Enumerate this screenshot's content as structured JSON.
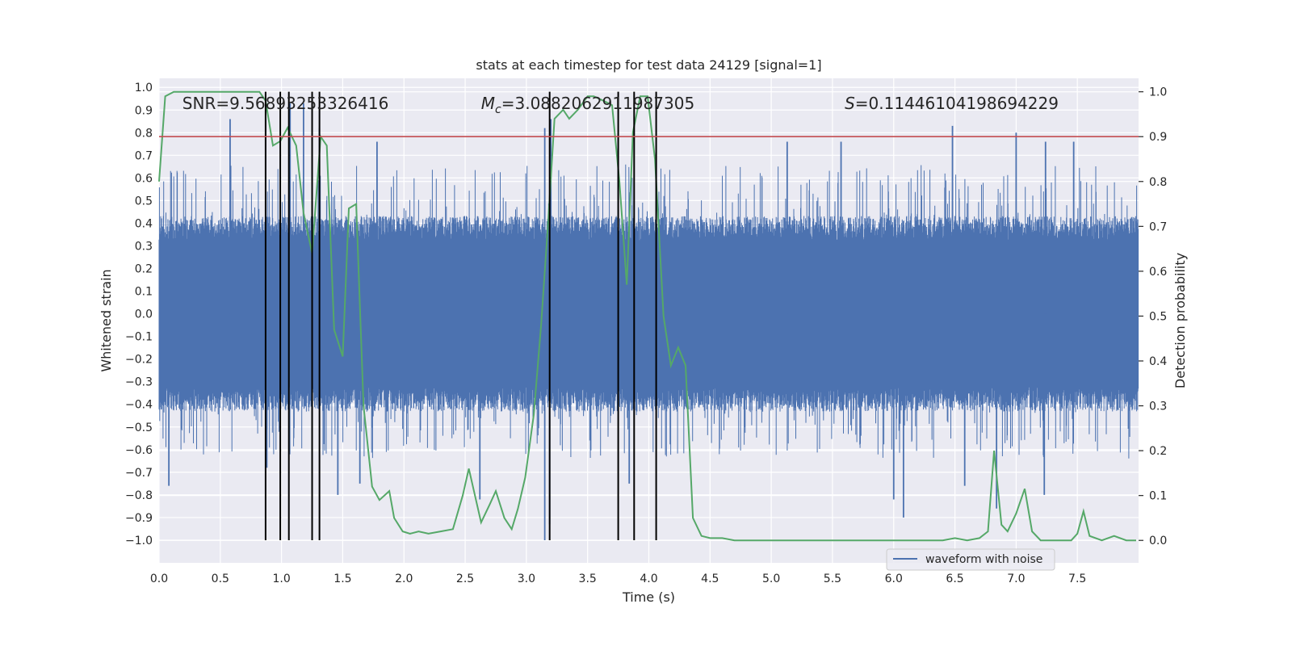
{
  "chart_data": {
    "type": "line",
    "title": "stats at each timestep for test data 24129 [signal=1]",
    "xlabel": "Time (s)",
    "ylabel": "Whitened strain",
    "y2label": "Detection probability",
    "xlim": [
      0,
      8
    ],
    "ylim": [
      -1.1,
      1.04
    ],
    "y2lim": [
      -0.05,
      1.03
    ],
    "xticks": [
      0.0,
      0.5,
      1.0,
      1.5,
      2.0,
      2.5,
      3.0,
      3.5,
      4.0,
      4.5,
      5.0,
      5.5,
      6.0,
      6.5,
      7.0,
      7.5
    ],
    "xtick_labels": [
      "0.0",
      "0.5",
      "1.0",
      "1.5",
      "2.0",
      "2.5",
      "3.0",
      "3.5",
      "4.0",
      "4.5",
      "5.0",
      "5.5",
      "6.0",
      "6.5",
      "7.0",
      "7.5"
    ],
    "yticks": [
      1.0,
      0.9,
      0.8,
      0.7,
      0.6,
      0.5,
      0.4,
      0.3,
      0.2,
      0.1,
      0.0,
      -0.1,
      -0.2,
      -0.3,
      -0.4,
      -0.5,
      -0.6,
      -0.7,
      -0.8,
      -0.9,
      -1.0
    ],
    "ytick_labels": [
      "1.0",
      "0.9",
      "0.8",
      "0.7",
      "0.6",
      "0.5",
      "0.4",
      "0.3",
      "0.2",
      "0.1",
      "0.0",
      "−0.1",
      "−0.2",
      "−0.3",
      "−0.4",
      "−0.5",
      "−0.6",
      "−0.7",
      "−0.8",
      "−0.9",
      "−1.0"
    ],
    "y2ticks": [
      1.0,
      0.9,
      0.8,
      0.7,
      0.6,
      0.5,
      0.4,
      0.3,
      0.2,
      0.1,
      0.0
    ],
    "y2tick_labels": [
      "1.0",
      "0.9",
      "0.8",
      "0.7",
      "0.6",
      "0.5",
      "0.4",
      "0.3",
      "0.2",
      "0.1",
      "0.0"
    ],
    "grid": true,
    "legend": {
      "position": "bottom-right",
      "entries": [
        "waveform with noise"
      ]
    },
    "annotations": {
      "snr": "SNR=9.56893253326416",
      "mc_symbol": "M",
      "mc_sub": "c",
      "mc_value": "=3.0882062911987305",
      "s_symbol": "S",
      "s_value": "=0.11446104198694229"
    },
    "threshold": {
      "axis": "y2",
      "value": 0.9,
      "color": "#c44e52"
    },
    "vlines": [
      0.87,
      0.99,
      1.06,
      1.25,
      1.31,
      3.19,
      3.75,
      3.88,
      4.06
    ],
    "waveform": {
      "name": "waveform with noise",
      "color": "#4c72b0",
      "x_range": [
        0,
        8
      ],
      "envelope_typical": 0.36,
      "spikes": [
        [
          0.58,
          0.86
        ],
        [
          0.87,
          0.86
        ],
        [
          1.07,
          0.93
        ],
        [
          1.18,
          0.93
        ],
        [
          1.78,
          0.76
        ],
        [
          1.31,
          0.82
        ],
        [
          0.08,
          -0.76
        ],
        [
          0.88,
          -0.68
        ],
        [
          1.46,
          -0.8
        ],
        [
          1.64,
          -0.75
        ],
        [
          2.62,
          -0.82
        ],
        [
          3.15,
          0.82
        ],
        [
          3.2,
          0.86
        ],
        [
          3.15,
          -1.0
        ],
        [
          3.19,
          -0.93
        ],
        [
          3.75,
          0.8
        ],
        [
          3.84,
          -0.75
        ],
        [
          5.13,
          0.76
        ],
        [
          5.57,
          0.76
        ],
        [
          6.48,
          0.83
        ],
        [
          6.58,
          -0.76
        ],
        [
          7.0,
          0.8
        ],
        [
          7.24,
          0.76
        ],
        [
          7.47,
          0.76
        ],
        [
          6.0,
          -0.82
        ],
        [
          6.08,
          -0.9
        ],
        [
          7.23,
          -0.8
        ],
        [
          6.84,
          -0.86
        ],
        [
          1.25,
          -0.79
        ]
      ]
    },
    "probability": {
      "color": "#55a868",
      "x": [
        0.0,
        0.05,
        0.12,
        0.3,
        0.5,
        0.7,
        0.82,
        0.87,
        0.93,
        0.99,
        1.05,
        1.12,
        1.18,
        1.25,
        1.32,
        1.37,
        1.43,
        1.5,
        1.55,
        1.61,
        1.67,
        1.74,
        1.8,
        1.88,
        1.92,
        1.99,
        2.05,
        2.12,
        2.2,
        2.3,
        2.4,
        2.48,
        2.53,
        2.58,
        2.63,
        2.7,
        2.75,
        2.82,
        2.88,
        2.93,
        2.99,
        3.06,
        3.12,
        3.18,
        3.23,
        3.3,
        3.35,
        3.42,
        3.5,
        3.55,
        3.63,
        3.7,
        3.76,
        3.82,
        3.87,
        3.93,
        3.99,
        4.05,
        4.12,
        4.18,
        4.24,
        4.3,
        4.36,
        4.43,
        4.5,
        4.6,
        4.7,
        4.85,
        5.0,
        5.2,
        5.4,
        5.6,
        5.8,
        6.0,
        6.2,
        6.4,
        6.5,
        6.6,
        6.7,
        6.77,
        6.82,
        6.88,
        6.93,
        7.0,
        7.07,
        7.13,
        7.2,
        7.3,
        7.45,
        7.5,
        7.55,
        7.6,
        7.7,
        7.8,
        7.9,
        7.98
      ],
      "y": [
        0.8,
        0.99,
        1.0,
        1.0,
        1.0,
        1.0,
        1.0,
        0.98,
        0.88,
        0.89,
        0.92,
        0.88,
        0.73,
        0.64,
        0.9,
        0.88,
        0.47,
        0.41,
        0.74,
        0.75,
        0.3,
        0.12,
        0.09,
        0.11,
        0.05,
        0.02,
        0.015,
        0.02,
        0.015,
        0.02,
        0.025,
        0.1,
        0.16,
        0.1,
        0.04,
        0.08,
        0.11,
        0.05,
        0.025,
        0.07,
        0.14,
        0.28,
        0.48,
        0.72,
        0.94,
        0.96,
        0.94,
        0.96,
        0.99,
        0.99,
        0.98,
        0.97,
        0.8,
        0.57,
        0.91,
        0.99,
        0.99,
        0.85,
        0.5,
        0.39,
        0.43,
        0.39,
        0.05,
        0.01,
        0.005,
        0.005,
        0.0,
        0.0,
        0.0,
        0.0,
        0.0,
        0.0,
        0.0,
        0.0,
        0.0,
        0.0,
        0.005,
        0.0,
        0.005,
        0.02,
        0.2,
        0.035,
        0.02,
        0.06,
        0.115,
        0.02,
        0.0,
        0.0,
        0.0,
        0.015,
        0.065,
        0.01,
        0.0,
        0.01,
        0.0,
        0.0
      ]
    }
  }
}
